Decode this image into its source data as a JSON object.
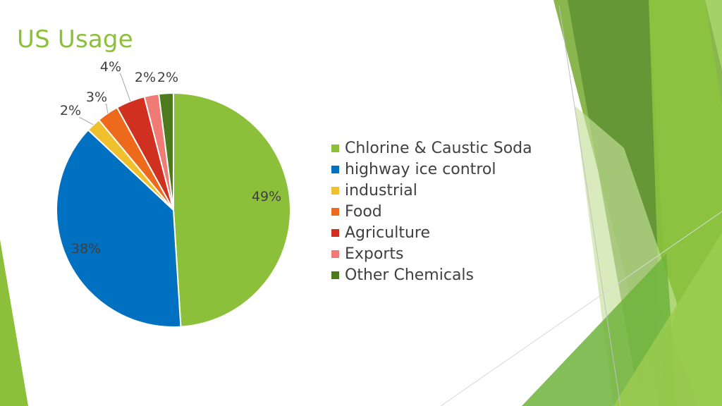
{
  "slide": {
    "title": "US Usage"
  },
  "chart_data": {
    "type": "pie",
    "slices": [
      {
        "label": "Chlorine & Caustic Soda",
        "value": 49,
        "display": "49%",
        "color": "#8dc03a"
      },
      {
        "label": "highway ice control",
        "value": 38,
        "display": "38%",
        "color": "#0070c0"
      },
      {
        "label": "industrial",
        "value": 2,
        "display": "2%",
        "color": "#f0c02c"
      },
      {
        "label": "Food",
        "value": 3,
        "display": "3%",
        "color": "#ed6a1d"
      },
      {
        "label": "Agriculture",
        "value": 4,
        "display": "4%",
        "color": "#d0301f"
      },
      {
        "label": "Exports",
        "value": 2,
        "display": "2%",
        "color": "#ef7b74"
      },
      {
        "label": "Other Chemicals",
        "value": 2,
        "display": "2%",
        "color": "#4d7a1c"
      }
    ],
    "legend_position": "right"
  }
}
